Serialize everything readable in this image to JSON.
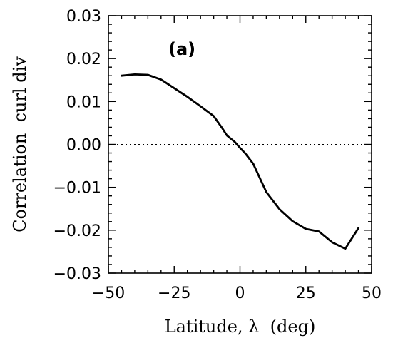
{
  "chart_data": {
    "type": "line",
    "panel_label": "(a)",
    "xlabel": "Latitude, λ  (deg)",
    "ylabel": "Correlation  curl div",
    "xlim": [
      -50,
      50
    ],
    "ylim": [
      -0.03,
      0.03
    ],
    "x_ticks": [
      -50,
      -25,
      0,
      25,
      50
    ],
    "x_tick_labels": [
      "−50",
      "−25",
      "0",
      "25",
      "50"
    ],
    "y_ticks": [
      -0.03,
      -0.02,
      -0.01,
      0.0,
      0.01,
      0.02,
      0.03
    ],
    "y_tick_labels": [
      "−0.03",
      "−0.02",
      "−0.01",
      "0.00",
      "0.01",
      "0.02",
      "0.03"
    ],
    "reference_lines": {
      "x": 0,
      "y": 0,
      "style": "dotted"
    },
    "grid": false,
    "series": [
      {
        "color": "#000000",
        "x": [
          -45,
          -40,
          -35,
          -30,
          -25,
          -20,
          -15,
          -10,
          -7,
          -5,
          -2,
          0,
          2,
          5,
          10,
          15,
          20,
          25,
          30,
          35,
          40,
          45
        ],
        "y": [
          0.016,
          0.0163,
          0.0162,
          0.0151,
          0.0131,
          0.0111,
          0.0089,
          0.0066,
          0.004,
          0.0021,
          0.0006,
          -0.0008,
          -0.0021,
          -0.0045,
          -0.0111,
          -0.0151,
          -0.0179,
          -0.0197,
          -0.0203,
          -0.0228,
          -0.0243,
          -0.0195
        ]
      }
    ]
  }
}
